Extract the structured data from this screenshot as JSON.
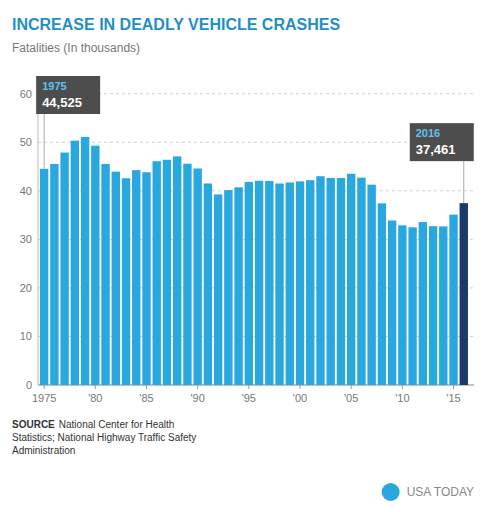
{
  "chart_data": {
    "type": "bar",
    "title": "INCREASE IN DEADLY VEHICLE CRASHES",
    "subtitle": "Fatalities (In thousands)",
    "x": [
      1975,
      1976,
      1977,
      1978,
      1979,
      1980,
      1981,
      1982,
      1983,
      1984,
      1985,
      1986,
      1987,
      1988,
      1989,
      1990,
      1991,
      1992,
      1993,
      1994,
      1995,
      1996,
      1997,
      1998,
      1999,
      2000,
      2001,
      2002,
      2003,
      2004,
      2005,
      2006,
      2007,
      2008,
      2009,
      2010,
      2011,
      2012,
      2013,
      2014,
      2015,
      2016
    ],
    "values": [
      44.525,
      45.523,
      47.878,
      50.331,
      51.093,
      49.301,
      45.535,
      43.945,
      42.589,
      44.257,
      43.825,
      46.087,
      46.39,
      47.087,
      45.582,
      44.599,
      41.508,
      39.25,
      40.15,
      40.716,
      41.817,
      42.065,
      42.013,
      41.501,
      41.717,
      41.945,
      42.196,
      43.005,
      42.643,
      42.636,
      43.51,
      42.708,
      41.259,
      37.423,
      33.883,
      32.885,
      32.479,
      33.561,
      32.719,
      32.675,
      35.092,
      37.461
    ],
    "colors": [
      "#29a8e0",
      "#29a8e0",
      "#29a8e0",
      "#29a8e0",
      "#29a8e0",
      "#29a8e0",
      "#29a8e0",
      "#29a8e0",
      "#29a8e0",
      "#29a8e0",
      "#29a8e0",
      "#29a8e0",
      "#29a8e0",
      "#29a8e0",
      "#29a8e0",
      "#29a8e0",
      "#29a8e0",
      "#29a8e0",
      "#29a8e0",
      "#29a8e0",
      "#29a8e0",
      "#29a8e0",
      "#29a8e0",
      "#29a8e0",
      "#29a8e0",
      "#29a8e0",
      "#29a8e0",
      "#29a8e0",
      "#29a8e0",
      "#29a8e0",
      "#29a8e0",
      "#29a8e0",
      "#29a8e0",
      "#29a8e0",
      "#29a8e0",
      "#29a8e0",
      "#29a8e0",
      "#29a8e0",
      "#29a8e0",
      "#29a8e0",
      "#29a8e0",
      "#1a3a6b"
    ],
    "xlim": [
      1974.4,
      2017.0
    ],
    "xticks": [
      1975,
      {
        "value": 1980,
        "label": "'80"
      },
      {
        "value": 1985,
        "label": "'85"
      },
      {
        "value": 1990,
        "label": "'90"
      },
      {
        "value": 1995,
        "label": "'95"
      },
      {
        "value": 2000,
        "label": "'00"
      },
      {
        "value": 2005,
        "label": "'05"
      },
      {
        "value": 2010,
        "label": "'10"
      },
      {
        "value": 2015,
        "label": "'15"
      }
    ],
    "ylim": [
      0,
      62
    ],
    "yticks": [
      0,
      10,
      20,
      30,
      40,
      50,
      60
    ],
    "grid": true,
    "annotations": [
      {
        "x": 1975,
        "label": "1975",
        "text": "44,525"
      },
      {
        "x": 2016,
        "label": "2016",
        "text": "37,461"
      }
    ],
    "source": "SOURCE",
    "source_text": "National Center for Health\nStatistics; National Highway Traffic Safety\nAdministration",
    "credit": "USA TODAY"
  }
}
